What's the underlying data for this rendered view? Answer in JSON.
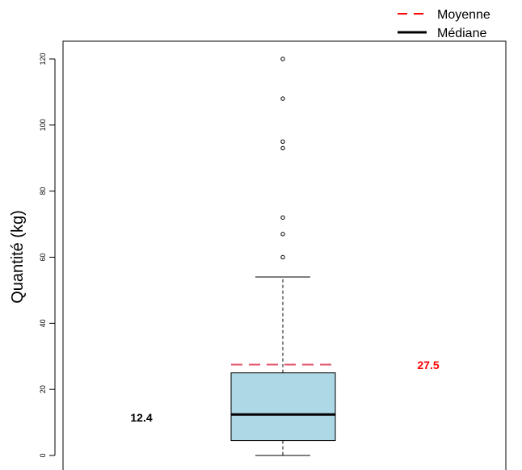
{
  "chart_data": {
    "type": "boxplot",
    "ylabel": "Quantité (kg)",
    "ylim": [
      0,
      120
    ],
    "yticks": [
      0,
      20,
      40,
      60,
      80,
      100,
      120
    ],
    "box": {
      "whisker_low": 0,
      "q1": 4.5,
      "median": 12.4,
      "q3": 25,
      "whisker_high": 54
    },
    "outliers": [
      60,
      67,
      72,
      93,
      95,
      108,
      120
    ],
    "mean": 27.5,
    "annotations": {
      "median_label": "12.4",
      "mean_label": "27.5"
    },
    "legend": {
      "position": "top-right",
      "items": [
        {
          "label": "Moyenne",
          "style": "dashed",
          "color": "#ff0000"
        },
        {
          "label": "Médiane",
          "style": "solid",
          "color": "#000000"
        }
      ]
    },
    "colors": {
      "box_fill": "#add8e6",
      "mean_line": "#e0506a",
      "mean_label": "#ff0000",
      "median_line": "#000000"
    }
  }
}
